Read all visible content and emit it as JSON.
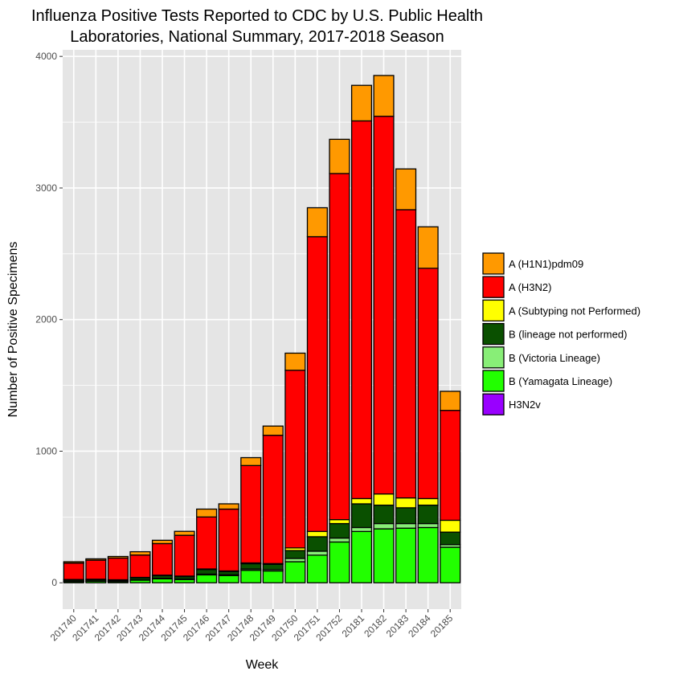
{
  "chart_data": {
    "type": "bar",
    "stacked": true,
    "title_lines": [
      "Influenza Positive Tests Reported to CDC by U.S. Public Health",
      "Laboratories, National Summary, 2017-2018 Season"
    ],
    "xlabel": "Week",
    "ylabel": "Number of Positive Specimens",
    "ylim": [
      -200,
      4050
    ],
    "yticks": [
      0,
      1000,
      2000,
      3000,
      4000
    ],
    "ytick_labels": [
      "0",
      "1000",
      "2000",
      "3000",
      "4000"
    ],
    "categories": [
      "201740",
      "201741",
      "201742",
      "201743",
      "201744",
      "201745",
      "201746",
      "201747",
      "201748",
      "201749",
      "201750",
      "201751",
      "201752",
      "20181",
      "20182",
      "20183",
      "20184",
      "20185"
    ],
    "grid": true,
    "legend_position": "right",
    "series": [
      {
        "name": "B (Yamagata Lineage)",
        "color": "#22ff00",
        "values": [
          10,
          12,
          10,
          20,
          30,
          25,
          60,
          55,
          95,
          90,
          160,
          210,
          310,
          390,
          410,
          415,
          420,
          270
        ]
      },
      {
        "name": "B (Victoria Lineage)",
        "color": "#88ee77",
        "values": [
          2,
          2,
          2,
          3,
          4,
          4,
          6,
          6,
          10,
          10,
          25,
          30,
          30,
          30,
          40,
          35,
          30,
          20
        ]
      },
      {
        "name": "B (lineage not performed)",
        "color": "#0a5000",
        "values": [
          10,
          10,
          8,
          15,
          20,
          18,
          35,
          25,
          40,
          40,
          60,
          110,
          110,
          180,
          140,
          120,
          140,
          95
        ]
      },
      {
        "name": "A (Subtyping not Performed)",
        "color": "#ffff00",
        "values": [
          3,
          3,
          3,
          3,
          4,
          4,
          4,
          4,
          6,
          6,
          20,
          40,
          30,
          40,
          85,
          75,
          50,
          90
        ]
      },
      {
        "name": "H3N2v",
        "color": "#9900ff",
        "values": [
          0,
          0,
          0,
          0,
          0,
          0,
          0,
          0,
          0,
          0,
          0,
          0,
          0,
          0,
          0,
          0,
          0,
          0
        ]
      },
      {
        "name": "A (H3N2)",
        "color": "#ff0000",
        "values": [
          125,
          145,
          165,
          170,
          240,
          310,
          395,
          470,
          740,
          975,
          1350,
          2240,
          2630,
          2870,
          2870,
          2190,
          1750,
          835
        ]
      },
      {
        "name": "A (H1N1)pdm09",
        "color": "#ff9900",
        "values": [
          10,
          10,
          12,
          25,
          25,
          30,
          60,
          40,
          60,
          70,
          130,
          220,
          260,
          270,
          310,
          310,
          315,
          145
        ]
      }
    ],
    "legend_order": [
      "A (H1N1)pdm09",
      "A (H3N2)",
      "A (Subtyping not Performed)",
      "B (lineage not performed)",
      "B (Victoria Lineage)",
      "B (Yamagata Lineage)",
      "H3N2v"
    ],
    "colors": {
      "panel_bg": "#e5e5e5",
      "grid": "#ffffff",
      "bar_outline": "#000000"
    }
  }
}
